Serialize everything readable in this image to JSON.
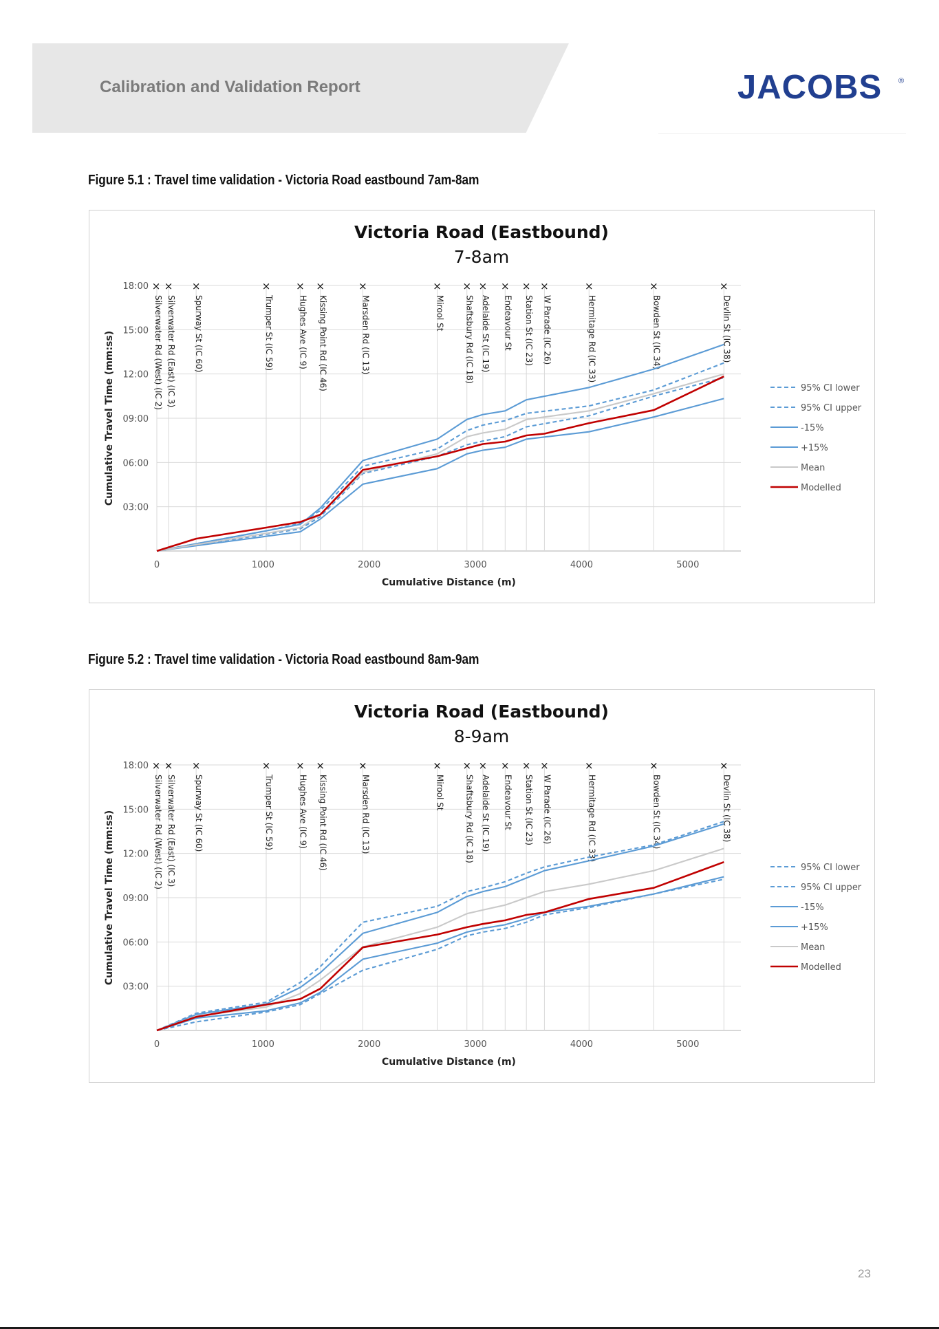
{
  "header": {
    "title": "Calibration and Validation Report",
    "logo_text": "JACOBS",
    "logo_mark": "®",
    "brand_color": "#213f90"
  },
  "figures": [
    {
      "caption": "Figure 5.1 : Travel time validation - Victoria Road eastbound 7am-8am"
    },
    {
      "caption": "Figure 5.2 : Travel time validation - Victoria Road eastbound 8am-9am"
    }
  ],
  "page_number": "23",
  "chart_data": [
    {
      "type": "line",
      "title": "Victoria Road (Eastbound)",
      "subtitle": "7-8am",
      "xlabel": "Cumulative Distance (m)",
      "ylabel": "Cumulative Travel Time (mm:ss)",
      "xlim": [
        0,
        5500
      ],
      "ylim": [
        0,
        1080
      ],
      "xticks": [
        "0",
        "1000",
        "2000",
        "3000",
        "4000",
        "5000"
      ],
      "yticks": [
        {
          "v": 180,
          "label": "03:00"
        },
        {
          "v": 360,
          "label": "06:00"
        },
        {
          "v": 540,
          "label": "09:00"
        },
        {
          "v": 720,
          "label": "12:00"
        },
        {
          "v": 900,
          "label": "15:00"
        },
        {
          "v": 1080,
          "label": "18:00"
        }
      ],
      "grid": true,
      "legend_position": "right",
      "markers": [
        {
          "x": 0,
          "label": "Silverwater Rd (West) (IC 2)"
        },
        {
          "x": 110,
          "label": "Silverwater Rd (East) (IC 3)"
        },
        {
          "x": 370,
          "label": "Spurway St (IC 60)"
        },
        {
          "x": 1030,
          "label": "Trumper St (IC 59)"
        },
        {
          "x": 1350,
          "label": "Hughes Ave (IC 9)"
        },
        {
          "x": 1540,
          "label": "Kissing Point Rd (IC 46)"
        },
        {
          "x": 1940,
          "label": "Marsden Rd (IC 13)"
        },
        {
          "x": 2640,
          "label": "Mirool St"
        },
        {
          "x": 2920,
          "label": "Shaftsbury Rd (IC 18)"
        },
        {
          "x": 3070,
          "label": "Adelaide St (IC 19)"
        },
        {
          "x": 3280,
          "label": "Endeavour St"
        },
        {
          "x": 3480,
          "label": "Station St (IC 23)"
        },
        {
          "x": 3650,
          "label": "W Parade (IC 26)"
        },
        {
          "x": 4070,
          "label": "Hermitage Rd (IC 33)"
        },
        {
          "x": 4680,
          "label": "Bowden St (IC 34)"
        },
        {
          "x": 5340,
          "label": "Devlin St (IC 38)"
        }
      ],
      "series": [
        {
          "name": "95% CI lower",
          "color": "#5b9bd5",
          "style": "dashed",
          "x": [
            0,
            1030,
            1350,
            1540,
            1940,
            2640,
            2920,
            3070,
            3280,
            3480,
            4070,
            4680,
            5340
          ],
          "y": [
            0,
            68,
            90,
            140,
            315,
            385,
            432,
            447,
            465,
            505,
            550,
            630,
            705
          ]
        },
        {
          "name": "95% CI upper",
          "color": "#5b9bd5",
          "style": "dashed",
          "x": [
            0,
            1030,
            1350,
            1540,
            1940,
            2640,
            2920,
            3070,
            3280,
            3480,
            4070,
            4680,
            5340
          ],
          "y": [
            0,
            82,
            112,
            165,
            345,
            415,
            490,
            512,
            530,
            560,
            590,
            655,
            765
          ]
        },
        {
          "name": "-15%",
          "color": "#5b9bd5",
          "style": "solid",
          "x": [
            0,
            1030,
            1350,
            1540,
            1940,
            2640,
            2920,
            3070,
            3280,
            3480,
            4070,
            4680,
            5340
          ],
          "y": [
            0,
            60,
            78,
            130,
            272,
            335,
            395,
            410,
            422,
            455,
            485,
            545,
            620
          ]
        },
        {
          "name": "+15%",
          "color": "#5b9bd5",
          "style": "solid",
          "x": [
            0,
            1030,
            1350,
            1540,
            1940,
            2640,
            2920,
            3070,
            3280,
            3480,
            4070,
            4680,
            5340
          ],
          "y": [
            0,
            82,
            108,
            175,
            368,
            455,
            535,
            555,
            570,
            615,
            665,
            740,
            840
          ]
        },
        {
          "name": "Mean",
          "color": "#c9c9c9",
          "style": "solid",
          "x": [
            0,
            1030,
            1350,
            1540,
            1940,
            2640,
            2920,
            3070,
            3280,
            3480,
            4070,
            4680,
            5340
          ],
          "y": [
            0,
            72,
            95,
            150,
            320,
            395,
            465,
            480,
            495,
            535,
            570,
            640,
            720
          ]
        },
        {
          "name": "Modelled",
          "color": "#c00000",
          "style": "solid",
          "x": [
            0,
            370,
            1030,
            1350,
            1540,
            1940,
            2640,
            2920,
            3070,
            3280,
            3480,
            3650,
            4070,
            4680,
            5340
          ],
          "y": [
            0,
            50,
            95,
            118,
            148,
            330,
            385,
            418,
            435,
            445,
            470,
            477,
            520,
            573,
            710
          ]
        }
      ]
    },
    {
      "type": "line",
      "title": "Victoria Road (Eastbound)",
      "subtitle": "8-9am",
      "xlabel": "Cumulative Distance (m)",
      "ylabel": "Cumulative Travel Time (mm:ss)",
      "xlim": [
        0,
        5500
      ],
      "ylim": [
        0,
        1080
      ],
      "xticks": [
        "0",
        "1000",
        "2000",
        "3000",
        "4000",
        "5000"
      ],
      "yticks": [
        {
          "v": 180,
          "label": "03:00"
        },
        {
          "v": 360,
          "label": "06:00"
        },
        {
          "v": 540,
          "label": "09:00"
        },
        {
          "v": 720,
          "label": "12:00"
        },
        {
          "v": 900,
          "label": "15:00"
        },
        {
          "v": 1080,
          "label": "18:00"
        }
      ],
      "grid": true,
      "legend_position": "right",
      "markers": [
        {
          "x": 0,
          "label": "Silverwater Rd (West) (IC 2)"
        },
        {
          "x": 110,
          "label": "Silverwater Rd (East) (IC 3)"
        },
        {
          "x": 370,
          "label": "Spurway St (IC 60)"
        },
        {
          "x": 1030,
          "label": "Trumper St (IC 59)"
        },
        {
          "x": 1350,
          "label": "Hughes Ave (IC 9)"
        },
        {
          "x": 1540,
          "label": "Kissing Point Rd (IC 46)"
        },
        {
          "x": 1940,
          "label": "Marsden Rd (IC 13)"
        },
        {
          "x": 2640,
          "label": "Mirool St"
        },
        {
          "x": 2920,
          "label": "Shaftsbury Rd (IC 18)"
        },
        {
          "x": 3070,
          "label": "Adelaide St (IC 19)"
        },
        {
          "x": 3280,
          "label": "Endeavour St"
        },
        {
          "x": 3480,
          "label": "Station St (IC 23)"
        },
        {
          "x": 3650,
          "label": "W Parade (IC 26)"
        },
        {
          "x": 4070,
          "label": "Hermitage Rd (IC 33)"
        },
        {
          "x": 4680,
          "label": "Bowden St (IC 34)"
        },
        {
          "x": 5340,
          "label": "Devlin St (IC 38)"
        }
      ],
      "series": [
        {
          "name": "95% CI lower",
          "color": "#5b9bd5",
          "style": "dashed",
          "x": [
            0,
            370,
            1030,
            1350,
            1540,
            1940,
            2640,
            2920,
            3070,
            3280,
            3480,
            3650,
            4070,
            4680,
            5340
          ],
          "y": [
            0,
            35,
            75,
            105,
            150,
            245,
            330,
            385,
            400,
            415,
            440,
            470,
            500,
            555,
            615
          ]
        },
        {
          "name": "95% CI upper",
          "color": "#5b9bd5",
          "style": "dashed",
          "x": [
            0,
            370,
            1030,
            1350,
            1540,
            1940,
            2640,
            2920,
            3070,
            3280,
            3480,
            3650,
            4070,
            4680,
            5340
          ],
          "y": [
            0,
            70,
            115,
            195,
            260,
            440,
            505,
            565,
            580,
            605,
            640,
            665,
            705,
            755,
            850
          ]
        },
        {
          "name": "-15%",
          "color": "#5b9bd5",
          "style": "solid",
          "x": [
            0,
            370,
            1030,
            1350,
            1540,
            1940,
            2640,
            2920,
            3070,
            3280,
            3480,
            3650,
            4070,
            4680,
            5340
          ],
          "y": [
            0,
            50,
            80,
            112,
            155,
            290,
            355,
            400,
            415,
            430,
            455,
            480,
            505,
            555,
            625
          ]
        },
        {
          "name": "+15%",
          "color": "#5b9bd5",
          "style": "solid",
          "x": [
            0,
            370,
            1030,
            1350,
            1540,
            1940,
            2640,
            2920,
            3070,
            3280,
            3480,
            3650,
            4070,
            4680,
            5340
          ],
          "y": [
            0,
            65,
            108,
            175,
            235,
            395,
            480,
            545,
            565,
            585,
            620,
            650,
            690,
            750,
            840
          ]
        },
        {
          "name": "Mean",
          "color": "#c9c9c9",
          "style": "solid",
          "x": [
            0,
            370,
            1030,
            1350,
            1540,
            1940,
            2640,
            2920,
            3070,
            3280,
            3480,
            3650,
            4070,
            4680,
            5340
          ],
          "y": [
            0,
            58,
            95,
            150,
            205,
            340,
            420,
            475,
            490,
            510,
            540,
            565,
            595,
            650,
            740
          ]
        },
        {
          "name": "Modelled",
          "color": "#c00000",
          "style": "solid",
          "x": [
            0,
            370,
            1030,
            1350,
            1540,
            1940,
            2640,
            2920,
            3070,
            3280,
            3480,
            3650,
            4070,
            4680,
            5340
          ],
          "y": [
            0,
            55,
            105,
            128,
            170,
            338,
            390,
            420,
            433,
            448,
            470,
            480,
            535,
            580,
            685
          ]
        }
      ]
    }
  ]
}
